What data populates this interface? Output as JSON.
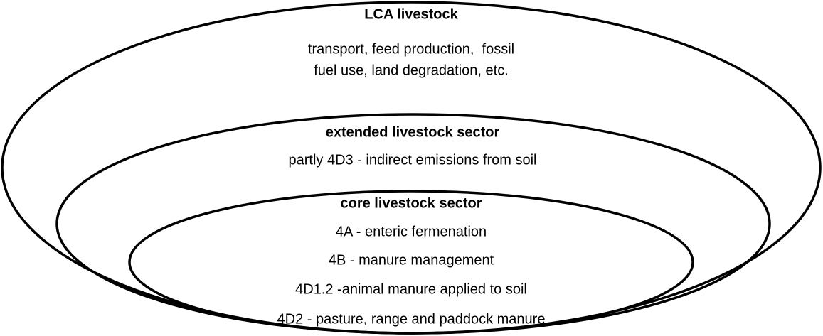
{
  "nodes": [
    {
      "title": "LCA livestock",
      "lines": [
        "transport, feed production,  fossil",
        "fuel use, land degradation, etc."
      ]
    },
    {
      "title": "extended livestock sector",
      "lines": [
        "partly 4D3 - indirect emissions from soil"
      ]
    },
    {
      "title": "core livestock sector",
      "lines": [
        "4A - enteric fermenation",
        "4B - manure management",
        "4D1.2 -animal manure applied to soil",
        "4D2 - pasture, range and paddock manure"
      ]
    }
  ]
}
